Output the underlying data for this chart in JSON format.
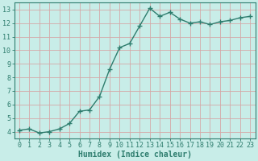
{
  "x": [
    0,
    1,
    2,
    3,
    4,
    5,
    6,
    7,
    8,
    9,
    10,
    11,
    12,
    13,
    14,
    15,
    16,
    17,
    18,
    19,
    20,
    21,
    22,
    23
  ],
  "y": [
    4.1,
    4.2,
    3.9,
    4.0,
    4.2,
    4.6,
    5.5,
    5.6,
    6.6,
    8.6,
    10.2,
    10.5,
    11.8,
    13.1,
    12.5,
    12.8,
    12.3,
    12.0,
    12.1,
    11.9,
    12.1,
    12.2,
    12.4,
    12.5
  ],
  "line_color": "#2e7d6e",
  "marker": "+",
  "markersize": 4,
  "linewidth": 1.0,
  "bg_color": "#c8ede8",
  "grid_color": "#d4a8a8",
  "xlabel": "Humidex (Indice chaleur)",
  "xlim": [
    -0.5,
    23.5
  ],
  "ylim": [
    3.5,
    13.5
  ],
  "yticks": [
    4,
    5,
    6,
    7,
    8,
    9,
    10,
    11,
    12,
    13
  ],
  "xticks": [
    0,
    1,
    2,
    3,
    4,
    5,
    6,
    7,
    8,
    9,
    10,
    11,
    12,
    13,
    14,
    15,
    16,
    17,
    18,
    19,
    20,
    21,
    22,
    23
  ],
  "tick_color": "#2e7d6e",
  "label_color": "#2e7d6e",
  "xlabel_fontsize": 7.0,
  "tick_fontsize": 6.0,
  "spine_color": "#2e7d6e"
}
